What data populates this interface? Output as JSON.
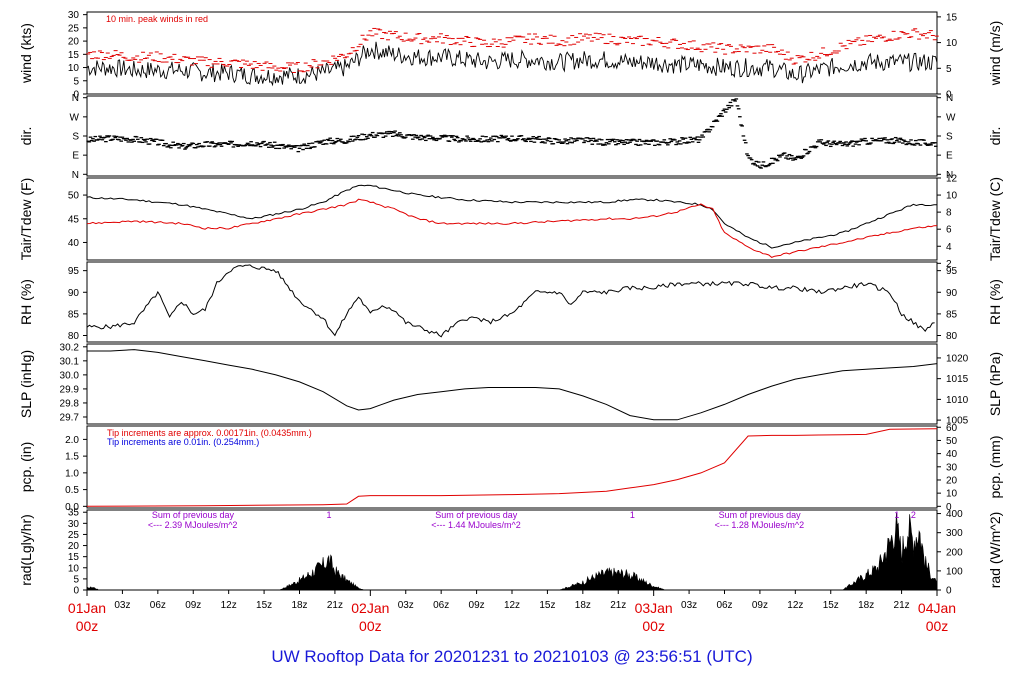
{
  "title": "UW Rooftop Data for 20201231  to  20210103 @ 23:56:51  (UTC)",
  "colors": {
    "red": "#e00000",
    "black": "#000000",
    "blue": "#0000dd",
    "purple": "#9900cc",
    "title": "#0000dd"
  },
  "x_axis": {
    "range_hours": [
      0,
      72
    ],
    "hour_ticks": [
      "03z",
      "06z",
      "09z",
      "12z",
      "15z",
      "18z",
      "21z",
      "03z",
      "06z",
      "09z",
      "12z",
      "15z",
      "18z",
      "21z",
      "03z",
      "06z",
      "09z",
      "12z",
      "15z",
      "18z",
      "21z"
    ],
    "hour_tick_positions": [
      3,
      6,
      9,
      12,
      15,
      18,
      21,
      27,
      30,
      33,
      36,
      39,
      42,
      45,
      51,
      54,
      57,
      60,
      63,
      66,
      69
    ],
    "day_labels": [
      {
        "date": "01Jan",
        "time": "00z",
        "hour": 0
      },
      {
        "date": "02Jan",
        "time": "00z",
        "hour": 24
      },
      {
        "date": "03Jan",
        "time": "00z",
        "hour": 48
      },
      {
        "date": "04Jan",
        "time": "00z",
        "hour": 72
      }
    ]
  },
  "panels": {
    "wind": {
      "left_label": "wind (kts)",
      "right_label": "wind (m/s)",
      "left_ticks": [
        "0",
        "5",
        "10",
        "15",
        "20",
        "25",
        "30"
      ],
      "right_ticks": [
        "0",
        "5",
        "10",
        "15"
      ],
      "note": "10 min. peak winds in red"
    },
    "dir": {
      "left_label": "dir.",
      "right_label": "dir.",
      "ticks": [
        "N",
        "E",
        "S",
        "W",
        "N"
      ]
    },
    "temp": {
      "left_label": "Tair/Tdew (F)",
      "right_label": "Tair/Tdew (C)",
      "left_ticks": [
        "40",
        "45",
        "50"
      ],
      "right_ticks": [
        "2",
        "4",
        "6",
        "8",
        "10",
        "12"
      ]
    },
    "rh": {
      "left_label": "RH (%)",
      "right_label": "RH (%)",
      "ticks": [
        "80",
        "85",
        "90",
        "95"
      ]
    },
    "slp": {
      "left_label": "SLP (inHg)",
      "right_label": "SLP (hPa)",
      "left_ticks": [
        "29.7",
        "29.8",
        "29.9",
        "30.0",
        "30.1",
        "30.2"
      ],
      "right_ticks": [
        "1005",
        "1010",
        "1015",
        "1020"
      ]
    },
    "pcp": {
      "left_label": "pcp. (in)",
      "right_label": "pcp. (mm)",
      "left_ticks": [
        "0.0",
        "0.5",
        "1.0",
        "1.5",
        "2.0"
      ],
      "right_ticks": [
        "0",
        "10",
        "20",
        "30",
        "40",
        "50",
        "60"
      ],
      "note_red": "Tip increments are approx. 0.00171in. (0.0435mm.)",
      "note_blue": "Tip increments are 0.01in. (0.254mm.)"
    },
    "rad": {
      "left_label": "rad(Lgly/hr)",
      "right_label": "rad (W/m^2)",
      "left_ticks": [
        "0",
        "5",
        "10",
        "15",
        "20",
        "25",
        "30",
        "35"
      ],
      "right_ticks": [
        "0",
        "100",
        "200",
        "300",
        "400"
      ],
      "daily_notes": [
        {
          "line1": "Sum of previous day",
          "line2": "<--- 2.39 MJoules/m^2",
          "hour": 5.5
        },
        {
          "line1": "Sum of previous day",
          "line2": "<--- 1.44 MJoules/m^2",
          "hour": 29.5
        },
        {
          "line1": "Sum of previous day",
          "line2": "<--- 1.28 MJoules/m^2",
          "hour": 53.5
        }
      ],
      "markers": [
        {
          "label": "1",
          "hour": 20.5
        },
        {
          "label": "1",
          "hour": 46.2
        },
        {
          "label": "1",
          "hour": 68.6
        },
        {
          "label": "2",
          "hour": 70.0
        }
      ]
    }
  },
  "chart_data": [
    {
      "type": "line",
      "name": "wind",
      "ylabel": "wind (kts)",
      "xlim": [
        0,
        72
      ],
      "ylim": [
        0,
        30
      ],
      "series": [
        {
          "name": "sustained",
          "color": "#000000",
          "x": [
            0,
            2,
            4,
            6,
            8,
            10,
            12,
            14,
            16,
            18,
            20,
            22,
            24,
            26,
            28,
            30,
            32,
            34,
            36,
            38,
            40,
            42,
            44,
            46,
            48,
            50,
            52,
            54,
            56,
            58,
            60,
            62,
            64,
            66,
            68,
            70,
            72
          ],
          "y": [
            10,
            10,
            9,
            9,
            9,
            8,
            8,
            7,
            7,
            7,
            8,
            10,
            17,
            15,
            14,
            14,
            13,
            12,
            13,
            13,
            12,
            13,
            13,
            12,
            12,
            11,
            11,
            10,
            10,
            10,
            7,
            9,
            11,
            12,
            12,
            12,
            12
          ]
        },
        {
          "name": "10 min. peak",
          "color": "#e00000",
          "x": [
            0,
            2,
            4,
            6,
            8,
            10,
            12,
            14,
            16,
            18,
            20,
            22,
            24,
            26,
            28,
            30,
            32,
            34,
            36,
            38,
            40,
            42,
            44,
            46,
            48,
            50,
            52,
            54,
            56,
            58,
            60,
            62,
            64,
            66,
            68,
            70,
            72
          ],
          "y": [
            15,
            15,
            14,
            14,
            13,
            12,
            12,
            11,
            10,
            10,
            12,
            15,
            23,
            22,
            21,
            21,
            20,
            19,
            20,
            21,
            20,
            21,
            21,
            20,
            20,
            19,
            18,
            17,
            17,
            17,
            13,
            15,
            18,
            20,
            22,
            23,
            22
          ]
        }
      ]
    },
    {
      "type": "scatter",
      "name": "wind direction",
      "ylabel": "dir.",
      "xlim": [
        0,
        72
      ],
      "ylim": [
        0,
        360
      ],
      "series": [
        {
          "name": "direction (deg)",
          "x": [
            0,
            2,
            4,
            6,
            8,
            10,
            12,
            14,
            16,
            18,
            20,
            22,
            24,
            26,
            28,
            30,
            32,
            34,
            36,
            38,
            40,
            42,
            44,
            46,
            48,
            50,
            52,
            54,
            55,
            56,
            57,
            58,
            59,
            60,
            62,
            64,
            66,
            68,
            70,
            72
          ],
          "y": [
            160,
            170,
            165,
            150,
            130,
            140,
            140,
            150,
            135,
            120,
            155,
            160,
            185,
            190,
            175,
            170,
            165,
            165,
            170,
            165,
            155,
            160,
            150,
            150,
            150,
            155,
            165,
            300,
            355,
            80,
            40,
            60,
            90,
            70,
            150,
            140,
            155,
            160,
            150,
            145
          ]
        }
      ]
    },
    {
      "type": "line",
      "name": "temperature",
      "ylabel": "Tair/Tdew (F)",
      "xlim": [
        0,
        72
      ],
      "ylim": [
        36,
        53
      ],
      "series": [
        {
          "name": "Tair",
          "color": "#000000",
          "x": [
            0,
            4,
            8,
            10,
            12,
            14,
            16,
            18,
            20,
            22,
            23,
            24,
            26,
            28,
            30,
            32,
            36,
            40,
            44,
            46,
            48,
            50,
            52,
            53,
            54,
            56,
            58,
            60,
            62,
            64,
            66,
            68,
            70,
            72
          ],
          "y": [
            49.5,
            49,
            48,
            47,
            46,
            45,
            46,
            47,
            48.5,
            51,
            52,
            52,
            51,
            50,
            49.5,
            49,
            48.5,
            48.5,
            48.5,
            49,
            49,
            48.5,
            48,
            47,
            44,
            41,
            39,
            40,
            41,
            42,
            44,
            46,
            48,
            48
          ]
        },
        {
          "name": "Tdew",
          "color": "#e00000",
          "x": [
            0,
            4,
            8,
            10,
            12,
            14,
            16,
            18,
            20,
            22,
            23,
            24,
            26,
            28,
            30,
            32,
            36,
            40,
            44,
            46,
            48,
            50,
            52,
            53,
            54,
            56,
            58,
            60,
            62,
            64,
            66,
            68,
            70,
            72
          ],
          "y": [
            44,
            44.5,
            44,
            43,
            43,
            44,
            45,
            46,
            47,
            48,
            49,
            48.5,
            47,
            45,
            44,
            44,
            44,
            44.5,
            45,
            45,
            45.5,
            46.5,
            48,
            47,
            42,
            39,
            37,
            38,
            39,
            40,
            41,
            42,
            43,
            43.5
          ]
        }
      ]
    },
    {
      "type": "line",
      "name": "relative humidity",
      "ylabel": "RH (%)",
      "xlim": [
        0,
        72
      ],
      "ylim": [
        79,
        97
      ],
      "series": [
        {
          "name": "RH",
          "x": [
            0,
            2,
            4,
            6,
            7,
            8,
            9,
            10,
            11,
            12,
            13,
            14,
            16,
            18,
            20,
            21,
            22,
            23,
            24,
            25,
            26,
            27,
            28,
            29,
            30,
            31,
            32,
            33,
            34,
            36,
            38,
            40,
            41,
            42,
            44,
            46,
            48,
            50,
            52,
            54,
            56,
            58,
            60,
            62,
            64,
            66,
            68,
            69,
            70,
            71,
            72
          ],
          "y": [
            82,
            82,
            83,
            90,
            84,
            88,
            85,
            86,
            92,
            95,
            96,
            96,
            95,
            88,
            84,
            80,
            85,
            89,
            85,
            87,
            86,
            83,
            82,
            81,
            80,
            82,
            84,
            84,
            83,
            85,
            90,
            90,
            87,
            90,
            90,
            91,
            91,
            92,
            92,
            92,
            92,
            91,
            91,
            90,
            91,
            92,
            90,
            85,
            83,
            81,
            84
          ]
        }
      ]
    },
    {
      "type": "line",
      "name": "sea level pressure",
      "ylabel": "SLP (inHg)",
      "xlim": [
        0,
        72
      ],
      "ylim": [
        29.65,
        30.22
      ],
      "series": [
        {
          "name": "SLP",
          "x": [
            0,
            2,
            4,
            6,
            8,
            10,
            12,
            14,
            16,
            18,
            20,
            22,
            23,
            24,
            26,
            28,
            30,
            32,
            34,
            36,
            38,
            40,
            42,
            44,
            46,
            48,
            50,
            52,
            54,
            56,
            58,
            60,
            62,
            64,
            66,
            68,
            70,
            72
          ],
          "y": [
            30.17,
            30.17,
            30.18,
            30.16,
            30.13,
            30.1,
            30.07,
            30.04,
            30.0,
            29.95,
            29.88,
            29.78,
            29.75,
            29.76,
            29.82,
            29.86,
            29.88,
            29.9,
            29.91,
            29.91,
            29.91,
            29.9,
            29.85,
            29.79,
            29.71,
            29.68,
            29.68,
            29.73,
            29.79,
            29.86,
            29.92,
            29.97,
            30.0,
            30.03,
            30.04,
            30.05,
            30.06,
            30.08
          ]
        }
      ]
    },
    {
      "type": "line",
      "name": "precipitation",
      "ylabel": "pcp. (in)",
      "xlim": [
        0,
        72
      ],
      "ylim": [
        0,
        2.4
      ],
      "series": [
        {
          "name": "cumulative pcp",
          "color": "#e00000",
          "x": [
            0,
            10,
            20,
            22,
            23,
            24,
            26,
            30,
            36,
            40,
            44,
            46,
            48,
            50,
            52,
            54,
            56,
            58,
            60,
            62,
            64,
            66,
            68,
            70,
            72
          ],
          "y": [
            0,
            0.02,
            0.05,
            0.07,
            0.3,
            0.32,
            0.32,
            0.32,
            0.35,
            0.38,
            0.45,
            0.55,
            0.65,
            0.8,
            1.0,
            1.3,
            2.1,
            2.12,
            2.12,
            2.13,
            2.14,
            2.15,
            2.3,
            2.31,
            2.32
          ]
        }
      ]
    },
    {
      "type": "area",
      "name": "solar radiation",
      "ylabel": "rad(Lgly/hr)",
      "xlim": [
        0,
        72
      ],
      "ylim": [
        0,
        36
      ],
      "series": [
        {
          "name": "radiation",
          "color": "#000000",
          "x": [
            0,
            0.5,
            1,
            16.3,
            17,
            18,
            19,
            20,
            20.5,
            21,
            22,
            23,
            23.5,
            40,
            41,
            42,
            43,
            44,
            45,
            46,
            47,
            48,
            49,
            64,
            65,
            66,
            67,
            68,
            68.5,
            69,
            69.5,
            70,
            70.5,
            71,
            72
          ],
          "y": [
            1,
            1.5,
            0,
            0,
            2,
            5,
            9,
            13,
            16,
            10,
            5,
            1,
            0,
            0,
            2,
            4,
            7,
            9,
            9,
            8,
            5,
            2,
            0,
            0,
            4,
            8,
            12,
            25,
            34,
            20,
            33,
            27,
            32,
            14,
            3
          ]
        }
      ]
    }
  ]
}
